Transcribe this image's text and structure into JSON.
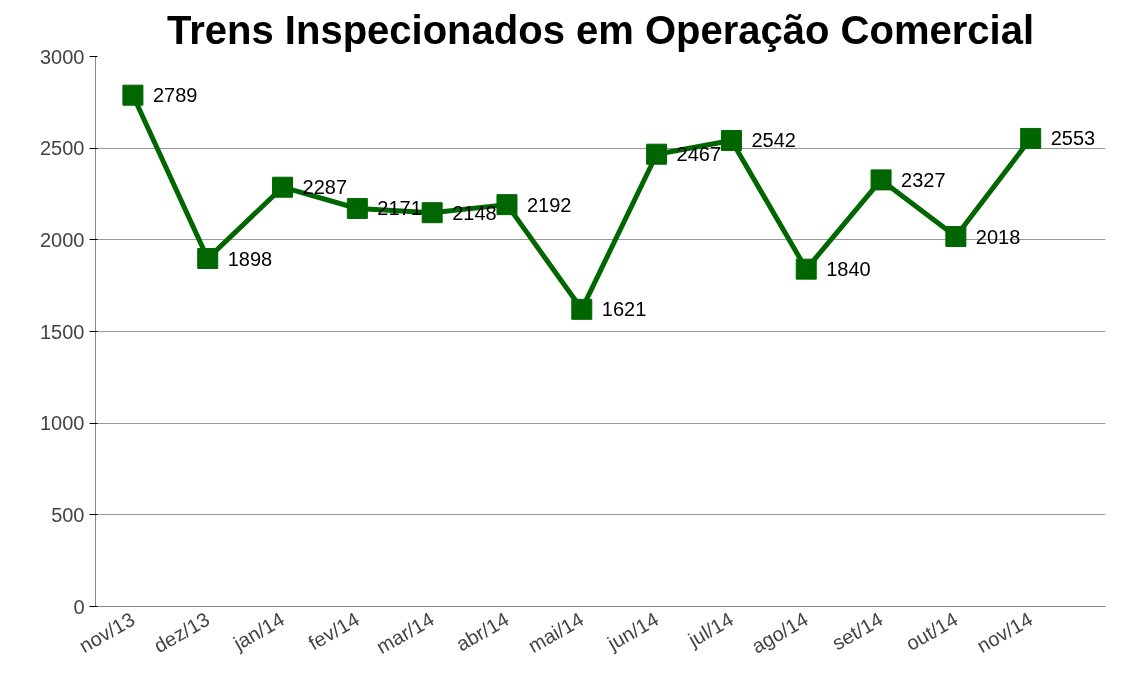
{
  "chart_data": {
    "type": "line",
    "title": "Trens Inspecionados em Operação Comercial",
    "categories": [
      "nov/13",
      "dez/13",
      "jan/14",
      "fev/14",
      "mar/14",
      "abr/14",
      "mai/14",
      "jun/14",
      "jul/14",
      "ago/14",
      "set/14",
      "out/14",
      "nov/14"
    ],
    "series": [
      {
        "color": "#006600",
        "values": [
          2789,
          1898,
          2287,
          2171,
          2148,
          2192,
          1621,
          2467,
          2542,
          1840,
          2327,
          2018,
          2553
        ]
      }
    ],
    "ylim": [
      0,
      3000
    ],
    "yticks": [
      0,
      500,
      1000,
      1500,
      2000,
      2500,
      3000
    ],
    "grid": "y",
    "marker": "square",
    "line_style": "solid",
    "data_labels": true
  }
}
